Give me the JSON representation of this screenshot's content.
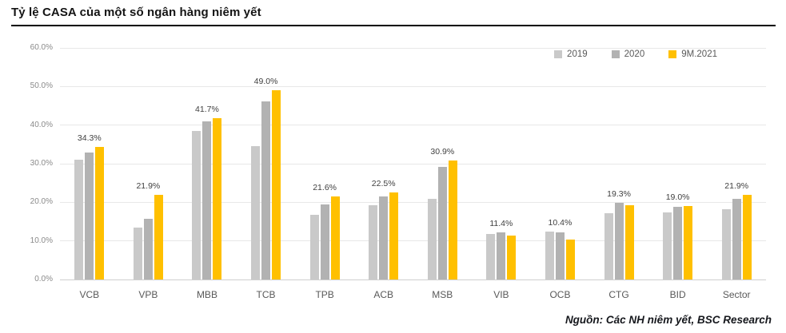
{
  "header": {
    "title": "Tỷ lệ CASA của một số ngân hàng niêm yết"
  },
  "footer": {
    "source": "Nguồn: Các NH niêm yết, BSC Research"
  },
  "chart_data": {
    "type": "bar",
    "title": "Tỷ lệ CASA của một số ngân hàng niêm yết",
    "categories": [
      "VCB",
      "VPB",
      "MBB",
      "TCB",
      "TPB",
      "ACB",
      "MSB",
      "VIB",
      "OCB",
      "CTG",
      "BID",
      "Sector"
    ],
    "series": [
      {
        "name": "2019",
        "color": "#c9c9c9",
        "values": [
          31.0,
          13.5,
          38.5,
          34.6,
          16.8,
          19.3,
          20.8,
          11.8,
          12.5,
          17.2,
          17.3,
          18.3
        ]
      },
      {
        "name": "2020",
        "color": "#b2b2b2",
        "values": [
          33.0,
          15.8,
          41.0,
          46.2,
          19.5,
          21.5,
          29.2,
          12.3,
          12.2,
          19.9,
          18.8,
          20.8
        ]
      },
      {
        "name": "9M.2021",
        "color": "#ffc000",
        "values": [
          34.3,
          21.9,
          41.7,
          49.0,
          21.6,
          22.5,
          30.9,
          11.4,
          10.4,
          19.3,
          19.0,
          21.9
        ],
        "data_labels": [
          "34.3%",
          "21.9%",
          "41.7%",
          "49.0%",
          "21.6%",
          "22.5%",
          "30.9%",
          "11.4%",
          "10.4%",
          "19.3%",
          "19.0%",
          "21.9%"
        ]
      }
    ],
    "ylim": [
      0,
      60
    ],
    "ytick_values": [
      0,
      10,
      20,
      30,
      40,
      50,
      60
    ],
    "ytick_labels": [
      "0.0%",
      "10.0%",
      "20.0%",
      "30.0%",
      "40.0%",
      "50.0%",
      "60.0%"
    ],
    "grid": true,
    "legend_position": "top-right"
  }
}
